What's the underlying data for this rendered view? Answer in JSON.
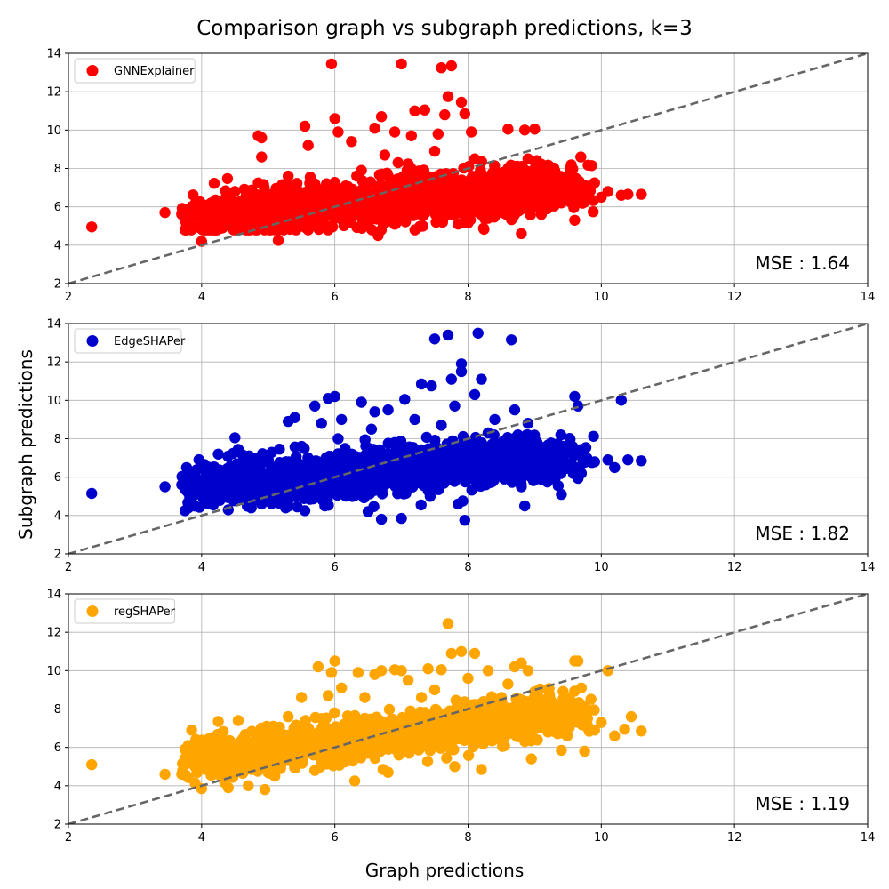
{
  "figure": {
    "title": "Comparison graph vs subgraph predictions, k=3",
    "xlabel": "Graph predictions",
    "ylabel": "Subgraph predictions"
  },
  "chart_data": [
    {
      "type": "scatter",
      "series": [
        {
          "name": "GNNExplainer",
          "color": "#ff0000"
        }
      ],
      "mse_label": "MSE : 1.64",
      "xlim": [
        2,
        14
      ],
      "ylim": [
        2,
        14
      ],
      "xticks": [
        2,
        4,
        6,
        8,
        10,
        12,
        14
      ],
      "yticks": [
        2,
        4,
        6,
        8,
        10,
        12,
        14
      ],
      "grid": true,
      "legend": "top-left",
      "reference_line": {
        "style": "dashed",
        "color": "#666666",
        "from": [
          2,
          2
        ],
        "to": [
          14,
          14
        ]
      },
      "points": [
        [
          2.35,
          4.95
        ],
        [
          3.45,
          5.7
        ],
        [
          3.7,
          5.65
        ],
        [
          3.75,
          4.8
        ],
        [
          3.85,
          5.6
        ],
        [
          3.9,
          6.05
        ],
        [
          4.0,
          4.2
        ],
        [
          4.05,
          5.2
        ],
        [
          4.1,
          6.1
        ],
        [
          4.2,
          5.55
        ],
        [
          4.3,
          6.3
        ],
        [
          4.4,
          5.1
        ],
        [
          4.5,
          6.8
        ],
        [
          4.6,
          5.8
        ],
        [
          4.7,
          4.9
        ],
        [
          4.8,
          6.2
        ],
        [
          4.85,
          9.7
        ],
        [
          4.9,
          9.6
        ],
        [
          4.9,
          8.6
        ],
        [
          4.95,
          5.35
        ],
        [
          5.1,
          6.6
        ],
        [
          5.15,
          4.25
        ],
        [
          5.25,
          5.9
        ],
        [
          5.3,
          7.6
        ],
        [
          5.4,
          6.1
        ],
        [
          5.5,
          5.5
        ],
        [
          5.55,
          10.2
        ],
        [
          5.6,
          9.2
        ],
        [
          5.7,
          7.2
        ],
        [
          5.8,
          6.4
        ],
        [
          5.9,
          5.7
        ],
        [
          5.95,
          13.45
        ],
        [
          6.0,
          10.6
        ],
        [
          6.05,
          9.9
        ],
        [
          6.1,
          6.8
        ],
        [
          6.2,
          5.9
        ],
        [
          6.25,
          9.4
        ],
        [
          6.4,
          7.9
        ],
        [
          6.5,
          6.5
        ],
        [
          6.6,
          10.1
        ],
        [
          6.65,
          4.5
        ],
        [
          6.7,
          10.7
        ],
        [
          6.75,
          8.7
        ],
        [
          6.8,
          6.1
        ],
        [
          6.9,
          9.9
        ],
        [
          6.95,
          8.3
        ],
        [
          7.0,
          13.45
        ],
        [
          7.05,
          5.6
        ],
        [
          7.15,
          9.7
        ],
        [
          7.2,
          11.0
        ],
        [
          7.3,
          7.8
        ],
        [
          7.35,
          11.05
        ],
        [
          7.4,
          6.3
        ],
        [
          7.5,
          8.9
        ],
        [
          7.55,
          9.8
        ],
        [
          7.6,
          13.25
        ],
        [
          7.65,
          10.8
        ],
        [
          7.7,
          11.75
        ],
        [
          7.75,
          13.35
        ],
        [
          7.8,
          6.6
        ],
        [
          7.85,
          5.1
        ],
        [
          7.9,
          11.45
        ],
        [
          7.95,
          10.85
        ],
        [
          8.0,
          7.2
        ],
        [
          8.05,
          9.9
        ],
        [
          8.1,
          8.5
        ],
        [
          8.2,
          6.0
        ],
        [
          8.3,
          5.4
        ],
        [
          8.4,
          7.0
        ],
        [
          8.5,
          5.9
        ],
        [
          8.6,
          10.05
        ],
        [
          8.7,
          6.9
        ],
        [
          8.8,
          4.6
        ],
        [
          8.85,
          10.0
        ],
        [
          8.9,
          8.5
        ],
        [
          9.0,
          10.05
        ],
        [
          9.1,
          5.6
        ],
        [
          9.2,
          6.8
        ],
        [
          9.3,
          7.15
        ],
        [
          9.4,
          6.2
        ],
        [
          9.5,
          6.5
        ],
        [
          9.6,
          5.3
        ],
        [
          9.7,
          6.9
        ],
        [
          9.8,
          6.4
        ],
        [
          9.9,
          7.25
        ],
        [
          10.0,
          6.5
        ],
        [
          10.1,
          6.8
        ],
        [
          10.3,
          6.6
        ],
        [
          10.4,
          6.65
        ],
        [
          10.6,
          6.65
        ]
      ]
    },
    {
      "type": "scatter",
      "series": [
        {
          "name": "EdgeSHAPer",
          "color": "#0000cd"
        }
      ],
      "mse_label": "MSE : 1.82",
      "xlim": [
        2,
        14
      ],
      "ylim": [
        2,
        14
      ],
      "xticks": [
        2,
        4,
        6,
        8,
        10,
        12,
        14
      ],
      "yticks": [
        2,
        4,
        6,
        8,
        10,
        12,
        14
      ],
      "grid": true,
      "legend": "top-left",
      "reference_line": {
        "style": "dashed",
        "color": "#666666",
        "from": [
          2,
          2
        ],
        "to": [
          14,
          14
        ]
      },
      "points": [
        [
          2.35,
          5.15
        ],
        [
          3.45,
          5.5
        ],
        [
          3.7,
          5.6
        ],
        [
          3.75,
          4.25
        ],
        [
          3.8,
          6.3
        ],
        [
          3.9,
          5.9
        ],
        [
          4.0,
          6.6
        ],
        [
          4.1,
          4.6
        ],
        [
          4.25,
          7.2
        ],
        [
          4.4,
          4.3
        ],
        [
          4.5,
          8.05
        ],
        [
          4.55,
          7.45
        ],
        [
          4.6,
          5.9
        ],
        [
          4.7,
          6.5
        ],
        [
          4.9,
          4.6
        ],
        [
          5.0,
          6.9
        ],
        [
          5.1,
          5.0
        ],
        [
          5.2,
          6.7
        ],
        [
          5.3,
          8.9
        ],
        [
          5.4,
          9.1
        ],
        [
          5.5,
          7.6
        ],
        [
          5.55,
          4.25
        ],
        [
          5.6,
          6.0
        ],
        [
          5.7,
          9.7
        ],
        [
          5.8,
          8.8
        ],
        [
          5.85,
          4.5
        ],
        [
          5.9,
          10.1
        ],
        [
          6.0,
          10.2
        ],
        [
          6.05,
          8.0
        ],
        [
          6.1,
          9.0
        ],
        [
          6.2,
          5.4
        ],
        [
          6.3,
          7.1
        ],
        [
          6.4,
          9.9
        ],
        [
          6.5,
          4.2
        ],
        [
          6.55,
          8.5
        ],
        [
          6.6,
          9.4
        ],
        [
          6.7,
          3.8
        ],
        [
          6.75,
          6.8
        ],
        [
          6.8,
          9.5
        ],
        [
          6.9,
          7.8
        ],
        [
          7.0,
          3.85
        ],
        [
          7.05,
          10.05
        ],
        [
          7.2,
          9.0
        ],
        [
          7.3,
          10.85
        ],
        [
          7.4,
          6.0
        ],
        [
          7.45,
          10.75
        ],
        [
          7.5,
          13.2
        ],
        [
          7.6,
          8.7
        ],
        [
          7.7,
          13.4
        ],
        [
          7.75,
          11.1
        ],
        [
          7.8,
          9.7
        ],
        [
          7.85,
          4.6
        ],
        [
          7.9,
          11.5
        ],
        [
          7.9,
          11.9
        ],
        [
          7.95,
          3.75
        ],
        [
          8.0,
          7.6
        ],
        [
          8.1,
          10.3
        ],
        [
          8.15,
          13.5
        ],
        [
          8.2,
          11.1
        ],
        [
          8.3,
          8.3
        ],
        [
          8.4,
          9.0
        ],
        [
          8.5,
          6.2
        ],
        [
          8.6,
          7.9
        ],
        [
          8.65,
          13.15
        ],
        [
          8.7,
          9.5
        ],
        [
          8.8,
          5.5
        ],
        [
          8.85,
          4.5
        ],
        [
          8.9,
          8.8
        ],
        [
          9.0,
          7.0
        ],
        [
          9.1,
          6.6
        ],
        [
          9.3,
          5.9
        ],
        [
          9.4,
          5.1
        ],
        [
          9.5,
          6.6
        ],
        [
          9.6,
          10.2
        ],
        [
          9.65,
          9.7
        ],
        [
          9.7,
          6.2
        ],
        [
          9.9,
          6.8
        ],
        [
          10.1,
          6.9
        ],
        [
          10.2,
          6.5
        ],
        [
          10.3,
          10.0
        ],
        [
          10.4,
          6.9
        ],
        [
          10.6,
          6.85
        ]
      ]
    },
    {
      "type": "scatter",
      "series": [
        {
          "name": "regSHAPer",
          "color": "#ffa500"
        }
      ],
      "mse_label": "MSE : 1.19",
      "xlim": [
        2,
        14
      ],
      "ylim": [
        2,
        14
      ],
      "xticks": [
        2,
        4,
        6,
        8,
        10,
        12,
        14
      ],
      "yticks": [
        2,
        4,
        6,
        8,
        10,
        12,
        14
      ],
      "grid": true,
      "legend": "top-left",
      "reference_line": {
        "style": "dashed",
        "color": "#666666",
        "from": [
          2,
          2
        ],
        "to": [
          14,
          14
        ]
      },
      "points": [
        [
          2.35,
          5.1
        ],
        [
          3.45,
          4.6
        ],
        [
          3.7,
          4.6
        ],
        [
          3.75,
          5.9
        ],
        [
          3.8,
          6.1
        ],
        [
          3.85,
          6.9
        ],
        [
          3.9,
          5.0
        ],
        [
          4.0,
          3.85
        ],
        [
          4.1,
          5.5
        ],
        [
          4.2,
          6.5
        ],
        [
          4.25,
          7.35
        ],
        [
          4.4,
          3.9
        ],
        [
          4.5,
          6.1
        ],
        [
          4.55,
          7.4
        ],
        [
          4.7,
          4.0
        ],
        [
          4.8,
          5.6
        ],
        [
          4.95,
          3.8
        ],
        [
          5.0,
          6.4
        ],
        [
          5.1,
          4.5
        ],
        [
          5.2,
          6.0
        ],
        [
          5.3,
          7.6
        ],
        [
          5.4,
          5.4
        ],
        [
          5.5,
          8.6
        ],
        [
          5.6,
          6.8
        ],
        [
          5.7,
          4.8
        ],
        [
          5.75,
          10.2
        ],
        [
          5.8,
          7.5
        ],
        [
          5.9,
          8.7
        ],
        [
          5.95,
          9.9
        ],
        [
          6.0,
          10.5
        ],
        [
          6.1,
          9.1
        ],
        [
          6.2,
          5.7
        ],
        [
          6.3,
          4.25
        ],
        [
          6.35,
          9.9
        ],
        [
          6.45,
          8.6
        ],
        [
          6.6,
          9.8
        ],
        [
          6.7,
          10.0
        ],
        [
          6.8,
          4.7
        ],
        [
          6.9,
          10.05
        ],
        [
          7.0,
          10.0
        ],
        [
          7.1,
          9.5
        ],
        [
          7.2,
          6.3
        ],
        [
          7.3,
          8.6
        ],
        [
          7.4,
          10.1
        ],
        [
          7.5,
          9.0
        ],
        [
          7.6,
          10.05
        ],
        [
          7.7,
          12.45
        ],
        [
          7.75,
          10.9
        ],
        [
          7.8,
          5.0
        ],
        [
          7.9,
          11.0
        ],
        [
          8.0,
          9.6
        ],
        [
          8.1,
          10.9
        ],
        [
          8.2,
          4.85
        ],
        [
          8.3,
          10.0
        ],
        [
          8.4,
          6.7
        ],
        [
          8.5,
          8.6
        ],
        [
          8.6,
          9.3
        ],
        [
          8.7,
          10.2
        ],
        [
          8.8,
          10.4
        ],
        [
          8.9,
          10.0
        ],
        [
          8.95,
          5.4
        ],
        [
          9.0,
          8.9
        ],
        [
          9.1,
          7.9
        ],
        [
          9.2,
          6.8
        ],
        [
          9.3,
          7.6
        ],
        [
          9.4,
          5.85
        ],
        [
          9.5,
          8.4
        ],
        [
          9.6,
          10.5
        ],
        [
          9.65,
          10.5
        ],
        [
          9.7,
          9.1
        ],
        [
          9.75,
          5.8
        ],
        [
          9.8,
          7.0
        ],
        [
          9.9,
          6.9
        ],
        [
          10.0,
          7.3
        ],
        [
          10.1,
          10.0
        ],
        [
          10.2,
          6.6
        ],
        [
          10.35,
          6.95
        ],
        [
          10.45,
          7.6
        ],
        [
          10.6,
          6.85
        ]
      ]
    }
  ]
}
